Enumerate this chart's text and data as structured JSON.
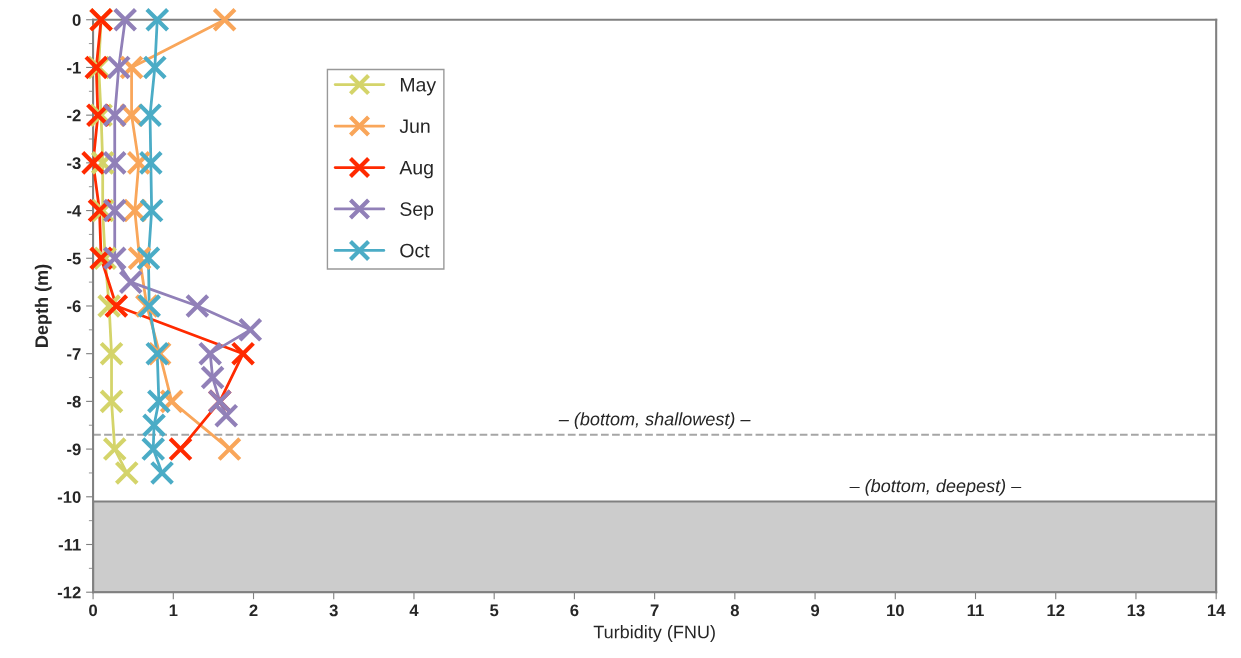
{
  "chart_data": {
    "type": "line",
    "xlabel": "Turbidity (FNU)",
    "ylabel": "Depth (m)",
    "xlim": [
      0,
      14
    ],
    "xticks": [
      0,
      1,
      2,
      3,
      4,
      5,
      6,
      7,
      8,
      9,
      10,
      11,
      12,
      13,
      14
    ],
    "ylim": [
      -12,
      0
    ],
    "yticks": [
      -12,
      -11,
      -10,
      -9,
      -8,
      -7,
      -6,
      -5,
      -4,
      -3,
      -2,
      -1,
      0
    ],
    "marker": "cross",
    "legend": "top left",
    "grid": false,
    "series": [
      {
        "name": "May",
        "color": "#d4d46a",
        "x": [
          0.1,
          0.07,
          0.1,
          0.12,
          0.12,
          0.15,
          0.2,
          0.23,
          0.23,
          0.27,
          0.42
        ],
        "values": [
          0,
          -1,
          -2,
          -3,
          -4,
          -5,
          -6,
          -7,
          -8,
          -9,
          -9.5
        ]
      },
      {
        "name": "Jun",
        "color": "#f9a65a",
        "x": [
          1.64,
          0.48,
          0.48,
          0.57,
          0.52,
          0.58,
          0.67,
          0.83,
          0.98,
          1.7
        ],
        "values": [
          0,
          -1,
          -2,
          -3,
          -4,
          -5,
          -6,
          -7,
          -8,
          -9
        ]
      },
      {
        "name": "Aug",
        "color": "#ff2a00",
        "x": [
          0.1,
          0.04,
          0.06,
          0,
          0.08,
          0.1,
          0.29,
          1.87,
          1.58,
          1.09
        ],
        "values": [
          0,
          -1,
          -2,
          -3,
          -4,
          -5,
          -6,
          -7,
          -8,
          -9
        ]
      },
      {
        "name": "Sep",
        "color": "#9180b8",
        "x": [
          0.4,
          0.32,
          0.27,
          0.27,
          0.27,
          0.27,
          0.47,
          1.3,
          1.96,
          1.46,
          1.49,
          1.58,
          1.66
        ],
        "values": [
          0,
          -1,
          -2,
          -3,
          -4,
          -5,
          -5.5,
          -6,
          -6.5,
          -7,
          -7.5,
          -8,
          -8.3
        ]
      },
      {
        "name": "Oct",
        "color": "#4bacc6",
        "x": [
          0.8,
          0.77,
          0.71,
          0.72,
          0.73,
          0.69,
          0.7,
          0.8,
          0.82,
          0.76,
          0.75,
          0.86
        ],
        "values": [
          0,
          -1,
          -2,
          -3,
          -4,
          -5,
          -6,
          -7,
          -8,
          -8.5,
          -9,
          -9.5
        ]
      }
    ],
    "ref_lines": [
      {
        "axis": "y",
        "value": -8.7,
        "label": "– (bottom, shallowest) –",
        "color": "#a6a6a6",
        "line_style": "dashed"
      }
    ],
    "bands": [
      {
        "axis": "y",
        "from": -12,
        "to": -10.1,
        "label": "– (bottom, deepest) –",
        "color": "#cccccc"
      }
    ]
  }
}
